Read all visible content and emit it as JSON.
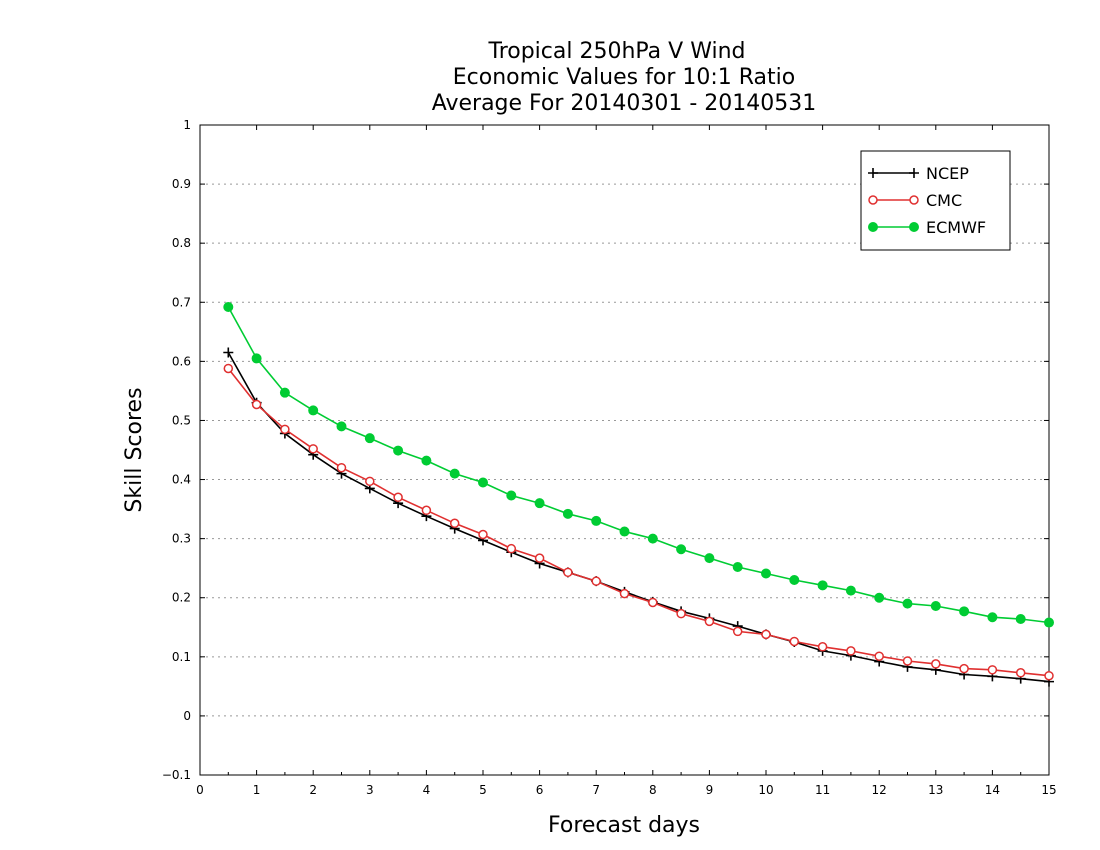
{
  "chart_data": {
    "type": "line",
    "title": [
      "Tropical 250hPa V Wind",
      "Economic Values for 10:1 Ratio",
      "Average For 20140301 - 20140531"
    ],
    "xlabel": "Forecast days",
    "ylabel": "Skill Scores",
    "xlim": [
      0,
      15
    ],
    "ylim": [
      -0.1,
      1
    ],
    "xticks": [
      0,
      1,
      2,
      3,
      4,
      5,
      6,
      7,
      8,
      9,
      10,
      11,
      12,
      13,
      14,
      15
    ],
    "yticks": [
      -0.1,
      0,
      0.1,
      0.2,
      0.3,
      0.4,
      0.5,
      0.6,
      0.7,
      0.8,
      0.9,
      1
    ],
    "ytick_labels": [
      "−0.1",
      "0",
      "0.1",
      "0.2",
      "0.3",
      "0.4",
      "0.5",
      "0.6",
      "0.7",
      "0.8",
      "0.9",
      "1"
    ],
    "grid": "horizontal dotted",
    "legend_position": "top-right",
    "x": [
      0.5,
      1,
      1.5,
      2,
      2.5,
      3,
      3.5,
      4,
      4.5,
      5,
      5.5,
      6,
      6.5,
      7,
      7.5,
      8,
      8.5,
      9,
      9.5,
      10,
      10.5,
      11,
      11.5,
      12,
      12.5,
      13,
      13.5,
      14,
      14.5,
      15
    ],
    "series": [
      {
        "name": "NCEP",
        "color": "#000000",
        "marker": "plus",
        "values": [
          0.615,
          0.53,
          0.478,
          0.442,
          0.41,
          0.385,
          0.36,
          0.338,
          0.317,
          0.297,
          0.277,
          0.258,
          0.243,
          0.228,
          0.21,
          0.193,
          0.177,
          0.165,
          0.152,
          0.138,
          0.125,
          0.11,
          0.102,
          0.092,
          0.083,
          0.078,
          0.07,
          0.067,
          0.063,
          0.058
        ]
      },
      {
        "name": "CMC",
        "color": "#e03030",
        "marker": "open-circle",
        "values": [
          0.588,
          0.527,
          0.485,
          0.452,
          0.42,
          0.397,
          0.37,
          0.348,
          0.326,
          0.307,
          0.283,
          0.267,
          0.243,
          0.228,
          0.207,
          0.192,
          0.173,
          0.16,
          0.143,
          0.138,
          0.126,
          0.117,
          0.11,
          0.101,
          0.093,
          0.088,
          0.08,
          0.078,
          0.073,
          0.068
        ]
      },
      {
        "name": "ECMWF",
        "color": "#00cc33",
        "marker": "filled-circle",
        "values": [
          0.692,
          0.605,
          0.547,
          0.517,
          0.49,
          0.47,
          0.449,
          0.432,
          0.41,
          0.395,
          0.373,
          0.36,
          0.342,
          0.33,
          0.312,
          0.3,
          0.282,
          0.267,
          0.252,
          0.241,
          0.23,
          0.221,
          0.212,
          0.2,
          0.19,
          0.186,
          0.177,
          0.167,
          0.164,
          0.158
        ]
      }
    ]
  }
}
